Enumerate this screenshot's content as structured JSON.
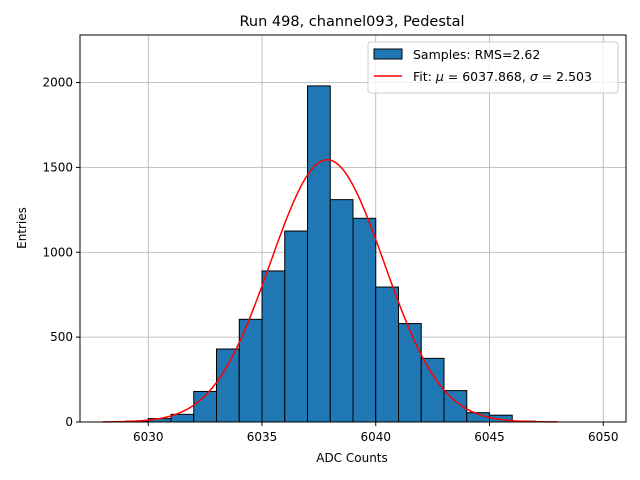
{
  "chart_data": {
    "type": "histogram",
    "title": "Run 498, channel093, Pedestal",
    "xlabel": "ADC Counts",
    "ylabel": "Entries",
    "xlim": [
      6027,
      6051
    ],
    "ylim": [
      0,
      2280
    ],
    "xticks": [
      6030,
      6035,
      6040,
      6045,
      6050
    ],
    "yticks": [
      0,
      500,
      1000,
      1500,
      2000
    ],
    "grid": true,
    "bar_color": "#1f77b4",
    "fit_color": "#ff0000",
    "bin_width": 1,
    "bins": [
      {
        "x0": 6029,
        "count": 5
      },
      {
        "x0": 6030,
        "count": 20
      },
      {
        "x0": 6031,
        "count": 45
      },
      {
        "x0": 6032,
        "count": 180
      },
      {
        "x0": 6033,
        "count": 430
      },
      {
        "x0": 6034,
        "count": 605
      },
      {
        "x0": 6035,
        "count": 890
      },
      {
        "x0": 6036,
        "count": 1125
      },
      {
        "x0": 6037,
        "count": 1980
      },
      {
        "x0": 6038,
        "count": 1310
      },
      {
        "x0": 6039,
        "count": 1200
      },
      {
        "x0": 6040,
        "count": 795
      },
      {
        "x0": 6041,
        "count": 580
      },
      {
        "x0": 6042,
        "count": 375
      },
      {
        "x0": 6043,
        "count": 185
      },
      {
        "x0": 6044,
        "count": 55
      },
      {
        "x0": 6045,
        "count": 40
      },
      {
        "x0": 6046,
        "count": 5
      }
    ],
    "fit": {
      "type": "gaussian",
      "mu": 6037.868,
      "sigma": 2.503,
      "amplitude": 1545,
      "x_range": [
        6028,
        6048
      ]
    },
    "legend": {
      "position": "top-right",
      "entries": [
        {
          "kind": "patch",
          "text": "Samples: RMS=2.62"
        },
        {
          "kind": "line",
          "prefix": "Fit: ",
          "mu_symbol": "μ",
          "mu_text": " = 6037.868, ",
          "sigma_symbol": "σ",
          "sigma_text": " = 2.503"
        }
      ]
    }
  }
}
